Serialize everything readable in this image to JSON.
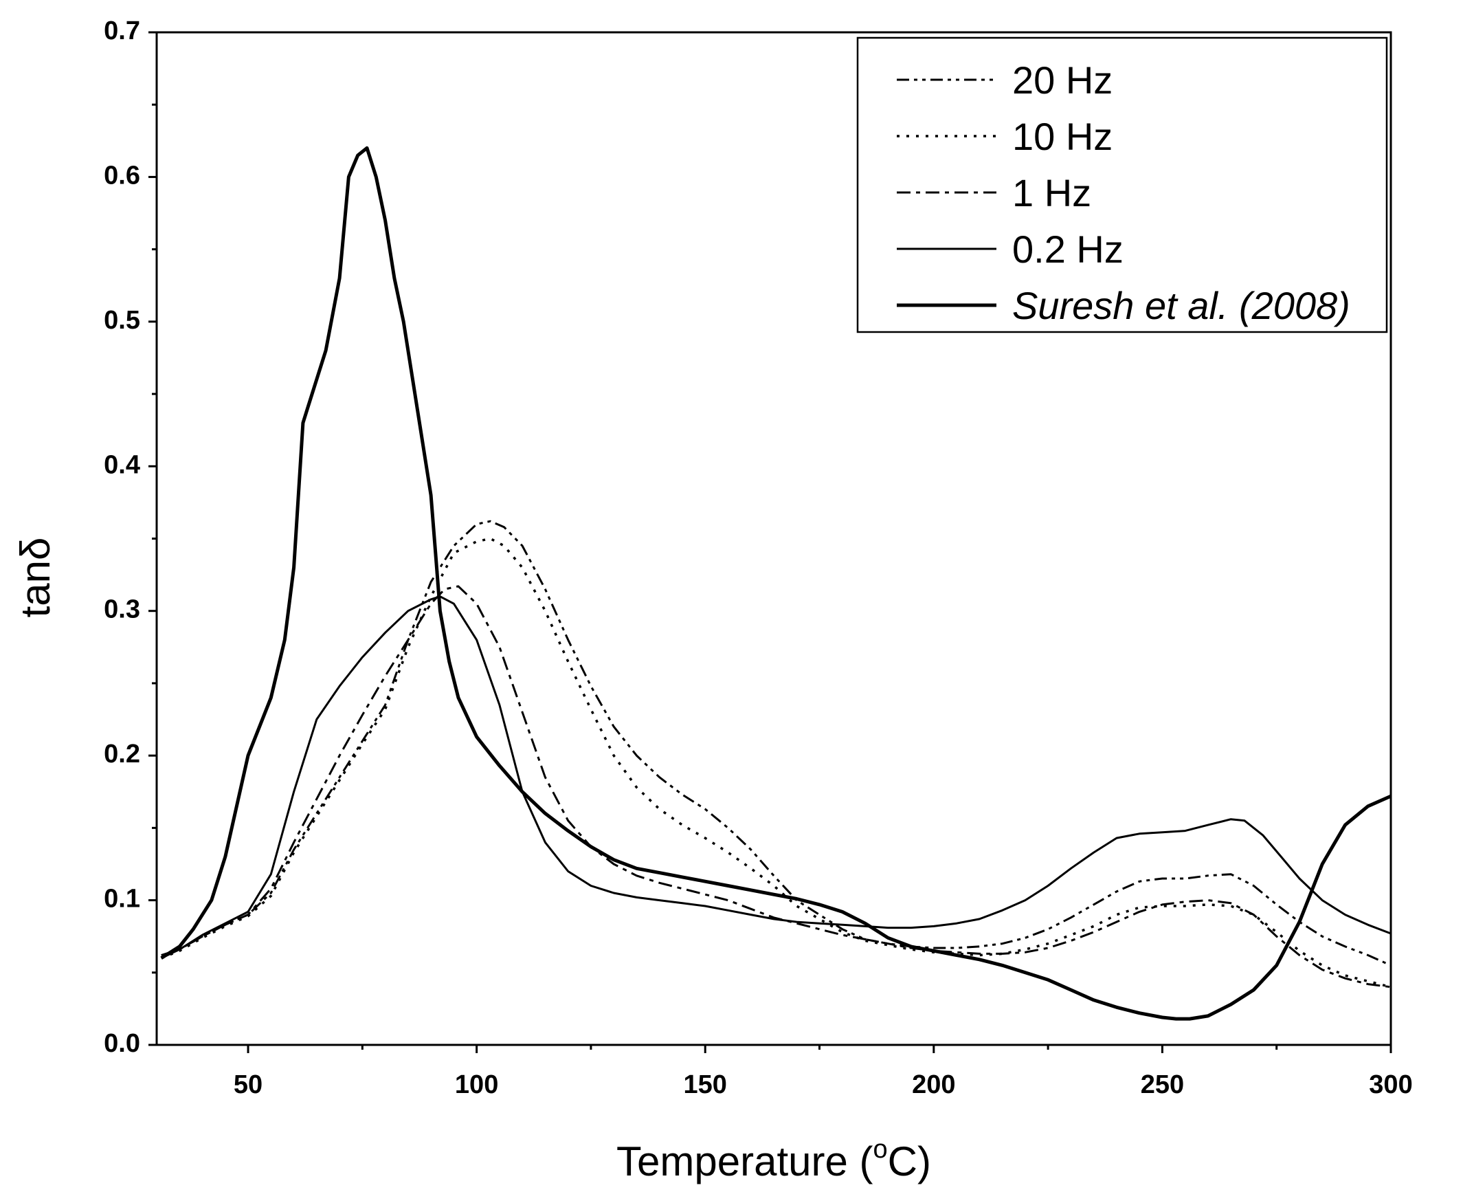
{
  "chart_data": {
    "type": "line",
    "title": "",
    "xlabel": "Temperature (",
    "xlabel_super": "o",
    "xlabel_suffix": "C)",
    "ylabel": "tanδ",
    "xlim": [
      30,
      300
    ],
    "ylim": [
      0.0,
      0.7
    ],
    "x_ticks": [
      50,
      100,
      150,
      200,
      250,
      300
    ],
    "x_tick_labels": [
      "50",
      "100",
      "150",
      "200",
      "250",
      "300"
    ],
    "y_ticks": [
      0.0,
      0.1,
      0.2,
      0.3,
      0.4,
      0.5,
      0.6,
      0.7
    ],
    "y_tick_labels": [
      "0.0",
      "0.1",
      "0.2",
      "0.3",
      "0.4",
      "0.5",
      "0.6",
      "0.7"
    ],
    "legend_position": "top-right",
    "series": [
      {
        "name": "20 Hz",
        "style": "dash-dot-dot",
        "italic": false,
        "x": [
          31,
          35,
          40,
          45,
          50,
          55,
          60,
          65,
          70,
          75,
          80,
          85,
          90,
          95,
          100,
          103,
          106,
          110,
          115,
          120,
          125,
          130,
          135,
          140,
          145,
          150,
          155,
          160,
          165,
          170,
          175,
          180,
          185,
          190,
          195,
          200,
          205,
          210,
          215,
          220,
          225,
          230,
          235,
          240,
          245,
          250,
          255,
          260,
          265,
          270,
          275,
          280,
          285,
          290,
          295,
          300
        ],
        "y": [
          0.062,
          0.066,
          0.075,
          0.083,
          0.09,
          0.105,
          0.135,
          0.16,
          0.185,
          0.21,
          0.235,
          0.28,
          0.32,
          0.345,
          0.36,
          0.362,
          0.358,
          0.345,
          0.315,
          0.28,
          0.248,
          0.22,
          0.2,
          0.185,
          0.173,
          0.163,
          0.15,
          0.135,
          0.117,
          0.1,
          0.09,
          0.08,
          0.073,
          0.07,
          0.068,
          0.067,
          0.067,
          0.068,
          0.07,
          0.074,
          0.08,
          0.088,
          0.097,
          0.106,
          0.113,
          0.115,
          0.115,
          0.117,
          0.118,
          0.11,
          0.097,
          0.085,
          0.075,
          0.068,
          0.062,
          0.055
        ]
      },
      {
        "name": "10 Hz",
        "style": "dotted",
        "italic": false,
        "x": [
          31,
          35,
          40,
          45,
          50,
          55,
          60,
          65,
          70,
          75,
          80,
          85,
          90,
          95,
          100,
          103,
          106,
          110,
          115,
          120,
          125,
          130,
          135,
          140,
          145,
          150,
          155,
          160,
          165,
          170,
          175,
          180,
          185,
          190,
          195,
          200,
          205,
          210,
          215,
          220,
          225,
          230,
          235,
          240,
          245,
          250,
          255,
          260,
          265,
          270,
          275,
          280,
          285,
          290,
          295,
          300
        ],
        "y": [
          0.06,
          0.065,
          0.074,
          0.082,
          0.089,
          0.103,
          0.133,
          0.158,
          0.183,
          0.208,
          0.232,
          0.275,
          0.31,
          0.34,
          0.348,
          0.35,
          0.345,
          0.33,
          0.3,
          0.265,
          0.232,
          0.2,
          0.178,
          0.163,
          0.152,
          0.143,
          0.133,
          0.122,
          0.11,
          0.096,
          0.087,
          0.078,
          0.072,
          0.069,
          0.066,
          0.064,
          0.063,
          0.062,
          0.063,
          0.066,
          0.07,
          0.076,
          0.082,
          0.09,
          0.095,
          0.096,
          0.096,
          0.097,
          0.096,
          0.09,
          0.078,
          0.065,
          0.055,
          0.048,
          0.044,
          0.04
        ]
      },
      {
        "name": "1 Hz",
        "style": "dash-dot",
        "italic": false,
        "x": [
          31,
          35,
          40,
          45,
          50,
          55,
          60,
          65,
          70,
          75,
          80,
          85,
          90,
          93,
          96,
          100,
          105,
          110,
          115,
          120,
          125,
          130,
          135,
          140,
          145,
          150,
          155,
          160,
          165,
          170,
          175,
          180,
          185,
          190,
          195,
          200,
          205,
          210,
          215,
          220,
          225,
          230,
          235,
          240,
          245,
          250,
          255,
          260,
          265,
          270,
          275,
          280,
          285,
          290,
          295,
          300
        ],
        "y": [
          0.06,
          0.066,
          0.075,
          0.083,
          0.09,
          0.108,
          0.14,
          0.17,
          0.2,
          0.228,
          0.255,
          0.28,
          0.305,
          0.315,
          0.317,
          0.305,
          0.275,
          0.23,
          0.185,
          0.155,
          0.137,
          0.125,
          0.117,
          0.112,
          0.108,
          0.104,
          0.1,
          0.094,
          0.088,
          0.084,
          0.08,
          0.076,
          0.073,
          0.07,
          0.067,
          0.065,
          0.064,
          0.063,
          0.063,
          0.064,
          0.067,
          0.072,
          0.078,
          0.085,
          0.092,
          0.097,
          0.099,
          0.1,
          0.098,
          0.09,
          0.075,
          0.062,
          0.052,
          0.046,
          0.042,
          0.04
        ]
      },
      {
        "name": "0.2 Hz",
        "style": "solid",
        "italic": false,
        "x": [
          31,
          35,
          40,
          45,
          50,
          55,
          60,
          65,
          70,
          75,
          80,
          85,
          90,
          92,
          95,
          100,
          105,
          110,
          115,
          120,
          125,
          130,
          135,
          140,
          145,
          150,
          155,
          160,
          165,
          170,
          175,
          180,
          185,
          190,
          195,
          200,
          205,
          210,
          215,
          220,
          225,
          230,
          235,
          240,
          245,
          250,
          255,
          260,
          265,
          268,
          272,
          276,
          280,
          285,
          290,
          295,
          300
        ],
        "y": [
          0.06,
          0.066,
          0.076,
          0.084,
          0.092,
          0.118,
          0.175,
          0.225,
          0.248,
          0.268,
          0.285,
          0.3,
          0.308,
          0.31,
          0.305,
          0.28,
          0.235,
          0.175,
          0.14,
          0.12,
          0.11,
          0.105,
          0.102,
          0.1,
          0.098,
          0.096,
          0.093,
          0.09,
          0.087,
          0.085,
          0.084,
          0.083,
          0.082,
          0.081,
          0.081,
          0.082,
          0.084,
          0.087,
          0.093,
          0.1,
          0.11,
          0.122,
          0.133,
          0.143,
          0.146,
          0.147,
          0.148,
          0.152,
          0.156,
          0.155,
          0.145,
          0.13,
          0.115,
          0.1,
          0.09,
          0.083,
          0.077
        ]
      },
      {
        "name": "Suresh et al. (2008)",
        "style": "solid-thick",
        "italic": true,
        "x": [
          31,
          35,
          38,
          42,
          45,
          50,
          55,
          58,
          60,
          62,
          63,
          65,
          67,
          70,
          72,
          74,
          76,
          78,
          80,
          82,
          84,
          86,
          88,
          90,
          91,
          92,
          94,
          96,
          100,
          105,
          110,
          115,
          120,
          125,
          130,
          135,
          140,
          145,
          150,
          155,
          160,
          165,
          170,
          175,
          180,
          185,
          190,
          195,
          200,
          205,
          210,
          215,
          220,
          225,
          230,
          235,
          240,
          245,
          250,
          253,
          256,
          260,
          265,
          270,
          275,
          280,
          285,
          290,
          295,
          300
        ],
        "y": [
          0.06,
          0.068,
          0.08,
          0.1,
          0.13,
          0.2,
          0.24,
          0.28,
          0.33,
          0.43,
          0.44,
          0.46,
          0.48,
          0.53,
          0.6,
          0.615,
          0.62,
          0.6,
          0.57,
          0.53,
          0.5,
          0.46,
          0.42,
          0.38,
          0.34,
          0.3,
          0.265,
          0.24,
          0.213,
          0.193,
          0.175,
          0.16,
          0.148,
          0.137,
          0.128,
          0.122,
          0.119,
          0.116,
          0.113,
          0.11,
          0.107,
          0.104,
          0.101,
          0.097,
          0.092,
          0.084,
          0.074,
          0.068,
          0.065,
          0.062,
          0.059,
          0.055,
          0.05,
          0.045,
          0.038,
          0.031,
          0.026,
          0.022,
          0.019,
          0.018,
          0.018,
          0.02,
          0.028,
          0.038,
          0.055,
          0.085,
          0.125,
          0.152,
          0.165,
          0.172
        ]
      }
    ]
  }
}
